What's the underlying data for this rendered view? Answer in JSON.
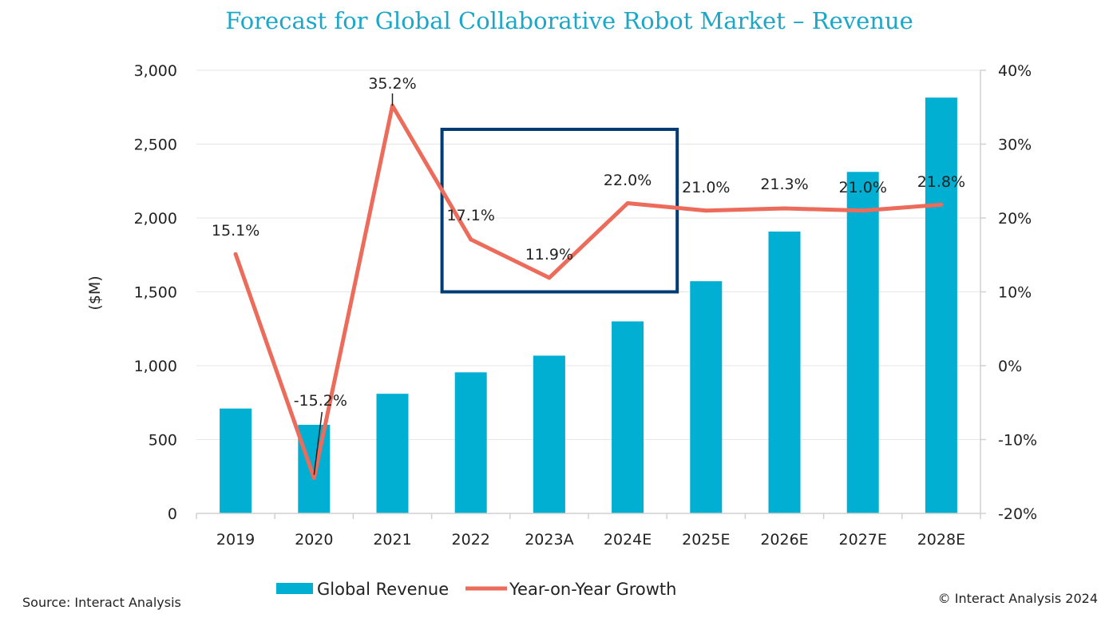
{
  "chart_data": {
    "type": "bar",
    "title": "Forecast for Global Collaborative Robot Market – Revenue",
    "ylabel": "($M)",
    "categories": [
      "2019",
      "2020",
      "2021",
      "2022",
      "2023A",
      "2024E",
      "2025E",
      "2026E",
      "2027E",
      "2028E"
    ],
    "ylim": [
      0,
      3000
    ],
    "y_ticks": [
      "0",
      "500",
      "1,000",
      "1,500",
      "2,000",
      "2,500",
      "3,000"
    ],
    "y2lim": [
      -20,
      40
    ],
    "y2_ticks": [
      "-20%",
      "-10%",
      "0%",
      "10%",
      "20%",
      "30%",
      "40%"
    ],
    "grid": true,
    "legend_position": "bottom",
    "series": [
      {
        "name": "Global Revenue",
        "type": "bar",
        "axis": "left",
        "color": "#00afd2",
        "values": [
          710,
          600,
          810,
          955,
          1068,
          1300,
          1572,
          1908,
          2312,
          2815
        ]
      },
      {
        "name": "Year-on-Year Growth",
        "type": "line",
        "axis": "right",
        "color": "#ec6b5a",
        "values": [
          15.1,
          -15.2,
          35.2,
          17.1,
          11.9,
          22.0,
          21.0,
          21.3,
          21.0,
          21.8
        ],
        "labels": [
          "15.1%",
          "-15.2%",
          "35.2%",
          "17.1%",
          "11.9%",
          "22.0%",
          "21.0%",
          "21.3%",
          "21.0%",
          "21.8%"
        ]
      }
    ],
    "highlight": {
      "from": "2022",
      "to": "2024E",
      "y_range": [
        1500,
        2600
      ],
      "color": "#003c74"
    }
  },
  "source_text": "Source: Interact Analysis",
  "copyright_text": "© Interact Analysis 2024",
  "colors": {
    "title": "#1aa7c8",
    "grid": "#e6e6e6",
    "axis": "#d0d0d0"
  }
}
